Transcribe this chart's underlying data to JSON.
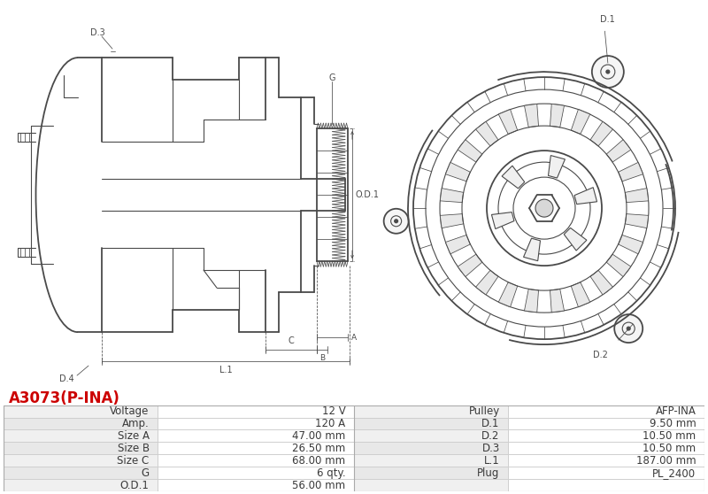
{
  "title": "A3073(P-INA)",
  "title_color": "#cc0000",
  "bg_color": "#ffffff",
  "table_rows": [
    [
      "Voltage",
      "12 V",
      "Pulley",
      "AFP-INA"
    ],
    [
      "Amp.",
      "120 A",
      "D.1",
      "9.50 mm"
    ],
    [
      "Size A",
      "47.00 mm",
      "D.2",
      "10.50 mm"
    ],
    [
      "Size B",
      "26.50 mm",
      "D.3",
      "10.50 mm"
    ],
    [
      "Size C",
      "68.00 mm",
      "L.1",
      "187.00 mm"
    ],
    [
      "G",
      "6 qty.",
      "Plug",
      "PL_2400"
    ],
    [
      "O.D.1",
      "56.00 mm",
      "",
      ""
    ]
  ],
  "line_color": "#4a4a4a",
  "dim_color": "#4a4a4a",
  "table_row_bg1": "#f0f0f0",
  "table_row_bg2": "#e8e8e8",
  "table_border": "#cccccc",
  "table_font_size": 8.5
}
